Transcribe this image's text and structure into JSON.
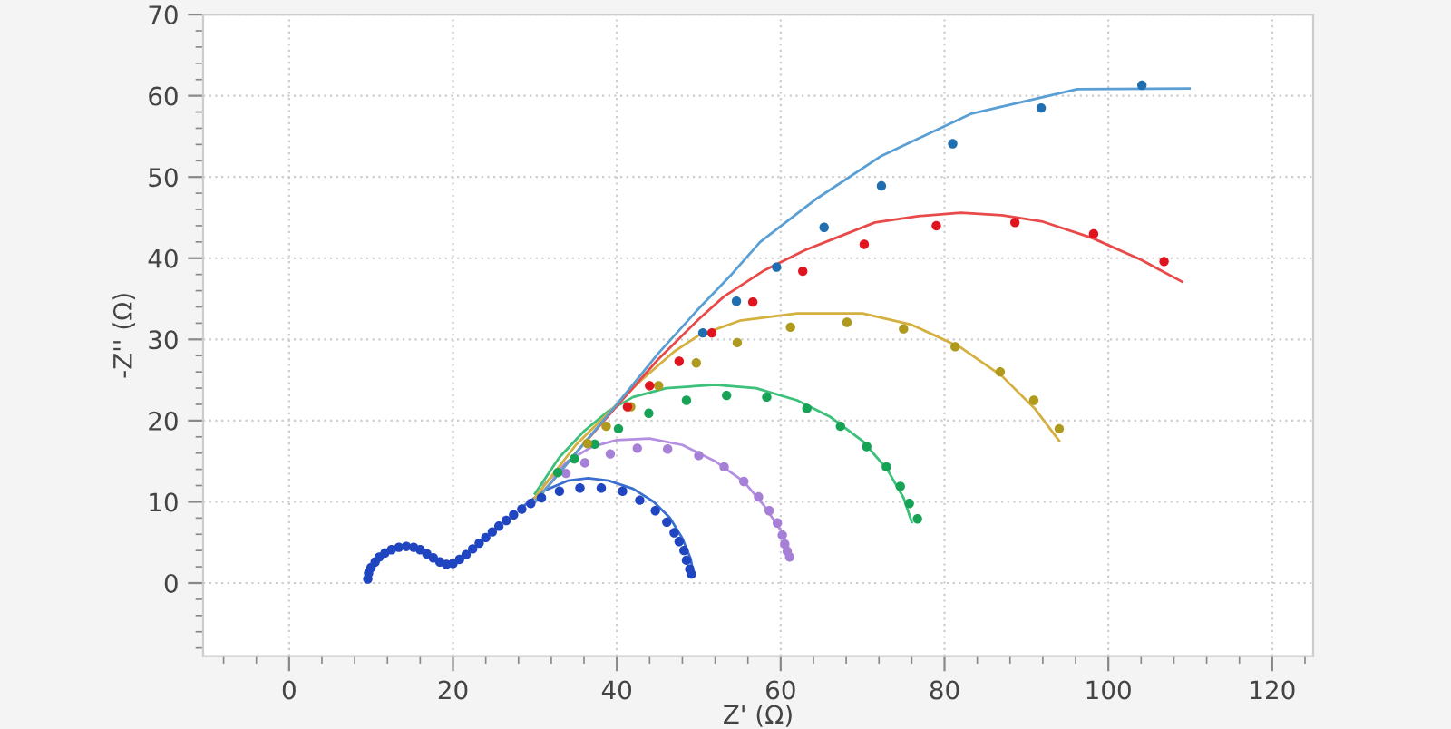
{
  "chart_data": {
    "type": "scatter",
    "xlabel": "Z' (Ω)",
    "ylabel": "-Z'' (Ω)",
    "xlim": [
      -10.5,
      125
    ],
    "ylim": [
      -9,
      70
    ],
    "xticks": [
      {
        "value": -8,
        "label": null
      },
      {
        "value": -4,
        "label": null
      },
      0,
      {
        "value": 4,
        "label": null
      },
      {
        "value": 8,
        "label": null
      },
      {
        "value": 12,
        "label": null
      },
      {
        "value": 16,
        "label": null
      },
      20,
      {
        "value": 24,
        "label": null
      },
      {
        "value": 28,
        "label": null
      },
      {
        "value": 32,
        "label": null
      },
      {
        "value": 36,
        "label": null
      },
      40,
      {
        "value": 44,
        "label": null
      },
      {
        "value": 48,
        "label": null
      },
      {
        "value": 52,
        "label": null
      },
      {
        "value": 56,
        "label": null
      },
      60,
      {
        "value": 64,
        "label": null
      },
      {
        "value": 68,
        "label": null
      },
      {
        "value": 72,
        "label": null
      },
      {
        "value": 76,
        "label": null
      },
      80,
      {
        "value": 84,
        "label": null
      },
      {
        "value": 88,
        "label": null
      },
      {
        "value": 92,
        "label": null
      },
      {
        "value": 96,
        "label": null
      },
      100,
      {
        "value": 104,
        "label": null
      },
      {
        "value": 108,
        "label": null
      },
      {
        "value": 112,
        "label": null
      },
      {
        "value": 116,
        "label": null
      },
      120,
      {
        "value": 124,
        "label": null
      }
    ],
    "yticks": [
      {
        "value": -8,
        "label": null
      },
      {
        "value": -6,
        "label": null
      },
      {
        "value": -4,
        "label": null
      },
      {
        "value": -2,
        "label": null
      },
      0,
      {
        "value": 2,
        "label": null
      },
      {
        "value": 4,
        "label": null
      },
      {
        "value": 6,
        "label": null
      },
      {
        "value": 8,
        "label": null
      },
      10,
      {
        "value": 12,
        "label": null
      },
      {
        "value": 14,
        "label": null
      },
      {
        "value": 16,
        "label": null
      },
      {
        "value": 18,
        "label": null
      },
      20,
      {
        "value": 22,
        "label": null
      },
      {
        "value": 24,
        "label": null
      },
      {
        "value": 26,
        "label": null
      },
      {
        "value": 28,
        "label": null
      },
      30,
      {
        "value": 32,
        "label": null
      },
      {
        "value": 34,
        "label": null
      },
      {
        "value": 36,
        "label": null
      },
      {
        "value": 38,
        "label": null
      },
      40,
      {
        "value": 42,
        "label": null
      },
      {
        "value": 44,
        "label": null
      },
      {
        "value": 46,
        "label": null
      },
      {
        "value": 48,
        "label": null
      },
      50,
      {
        "value": 52,
        "label": null
      },
      {
        "value": 54,
        "label": null
      },
      {
        "value": 56,
        "label": null
      },
      {
        "value": 58,
        "label": null
      },
      60,
      {
        "value": 62,
        "label": null
      },
      {
        "value": 64,
        "label": null
      },
      {
        "value": 66,
        "label": null
      },
      {
        "value": 68,
        "label": null
      },
      70
    ],
    "grid": true,
    "legend": false,
    "marker": "circle",
    "series": [
      {
        "type": "line",
        "marker": "none",
        "color": "#3a6fd0",
        "x": [
          28,
          31,
          34,
          36.5,
          39,
          42,
          44.5,
          46.5,
          48,
          49,
          49.3
        ],
        "values": [
          9,
          11.3,
          12.6,
          12.9,
          12.6,
          11.6,
          10,
          8,
          5.5,
          3,
          1.5
        ]
      },
      {
        "type": "line",
        "marker": "none",
        "color": "#b48ee0",
        "x": [
          31,
          34,
          37,
          40,
          44,
          48,
          52,
          55.5,
          58,
          60,
          61.3
        ],
        "values": [
          12,
          15,
          16.8,
          17.6,
          17.8,
          17,
          15,
          12.5,
          9.5,
          6.5,
          3.5
        ]
      },
      {
        "type": "line",
        "marker": "none",
        "color": "#3cc07a",
        "x": [
          30,
          33,
          36,
          39,
          42,
          46,
          52,
          57,
          62,
          66,
          70,
          73,
          75,
          76
        ],
        "values": [
          11,
          15.5,
          18.7,
          21.2,
          22.9,
          24,
          24.4,
          24,
          22.5,
          20.5,
          17.5,
          14,
          10.5,
          7.5
        ]
      },
      {
        "type": "line",
        "marker": "none",
        "color": "#d4b040",
        "x": [
          30,
          35,
          39,
          43,
          47,
          50,
          55,
          62,
          70,
          76,
          82,
          87,
          91,
          94
        ],
        "values": [
          10.5,
          17,
          21,
          25,
          28.5,
          30.5,
          32.3,
          33.2,
          33.2,
          31.8,
          29,
          25.5,
          21.5,
          17.5
        ]
      },
      {
        "type": "line",
        "marker": "none",
        "color": "#e84a4a",
        "x": [
          30,
          35,
          40,
          45,
          50,
          53.1,
          58,
          63,
          68,
          71.5,
          77,
          82,
          87,
          92,
          98,
          104,
          109
        ],
        "values": [
          10,
          16,
          21.8,
          27.5,
          32.5,
          35.3,
          38.5,
          41,
          43,
          44.4,
          45.2,
          45.6,
          45.3,
          44.5,
          42.5,
          39.8,
          37.1
        ]
      },
      {
        "type": "line",
        "marker": "none",
        "color": "#5a9fd4",
        "x": [
          30,
          35,
          40,
          45,
          50,
          54,
          57.5,
          64.2,
          72.3,
          83.3,
          96.2,
          109.9
        ],
        "values": [
          10,
          16,
          22,
          28.2,
          33.8,
          38,
          42,
          47.2,
          52.6,
          57.8,
          60.8,
          60.9
        ]
      },
      {
        "color": "#1f45c0",
        "x": [
          9.6,
          9.7,
          10,
          10.5,
          11,
          11.7,
          12.5,
          13.4,
          14.3,
          15.2,
          16,
          16.8,
          17.6,
          18.4,
          19.2,
          20,
          20.8,
          21.6,
          22.4,
          23.2,
          24,
          24.8,
          25.6,
          26.5,
          27.4,
          28.4,
          29.5,
          30.8,
          33,
          35.5,
          38.1,
          40.7,
          42.8,
          44.7,
          46.1,
          47,
          47.6,
          48.2,
          48.5,
          48.9,
          49.1
        ],
        "values": [
          0.5,
          1.2,
          1.9,
          2.6,
          3.2,
          3.7,
          4.1,
          4.4,
          4.5,
          4.4,
          4.1,
          3.6,
          3.1,
          2.6,
          2.3,
          2.4,
          2.9,
          3.5,
          4.2,
          4.9,
          5.6,
          6.3,
          7,
          7.7,
          8.4,
          9.1,
          9.8,
          10.5,
          11.3,
          11.7,
          11.7,
          11.3,
          10.2,
          8.9,
          7.5,
          6.2,
          5.1,
          4,
          2.8,
          1.7,
          1.1
        ]
      },
      {
        "color": "#a67fd6",
        "x": [
          33.8,
          36.1,
          39.2,
          42.5,
          46.2,
          50,
          53.1,
          55.5,
          57.3,
          58.6,
          59.6,
          60.2,
          60.5,
          60.8,
          61.1
        ],
        "values": [
          13.5,
          14.8,
          15.9,
          16.6,
          16.5,
          15.7,
          14.3,
          12.5,
          10.6,
          8.9,
          7.4,
          5.9,
          4.8,
          3.9,
          3.2
        ]
      },
      {
        "color": "#17a356",
        "x": [
          32.8,
          34.8,
          37.3,
          40.2,
          43.9,
          48.5,
          53.4,
          58.3,
          63.2,
          67.3,
          70.5,
          72.9,
          74.6,
          75.7,
          76.7
        ],
        "values": [
          13.6,
          15.3,
          17.1,
          19,
          20.9,
          22.5,
          23.1,
          22.9,
          21.5,
          19.3,
          16.8,
          14.3,
          11.9,
          9.8,
          7.9
        ]
      },
      {
        "color": "#b09a1e",
        "x": [
          36.4,
          38.7,
          41.7,
          45.1,
          49.7,
          54.7,
          61.2,
          68.1,
          75,
          81.3,
          86.8,
          90.9,
          94
        ],
        "values": [
          17.2,
          19.3,
          21.7,
          24.3,
          27.1,
          29.6,
          31.5,
          32.1,
          31.3,
          29.1,
          26,
          22.5,
          19
        ]
      },
      {
        "color": "#e0141e",
        "x": [
          41.3,
          44,
          47.6,
          51.6,
          56.6,
          62.7,
          70.2,
          79,
          88.6,
          98.2,
          106.8
        ],
        "values": [
          21.7,
          24.3,
          27.3,
          30.8,
          34.6,
          38.4,
          41.7,
          44,
          44.4,
          43,
          39.6
        ]
      },
      {
        "color": "#1f6fb0",
        "x": [
          50.5,
          54.6,
          59.5,
          65.3,
          72.3,
          81,
          91.8,
          104.1
        ],
        "values": [
          30.8,
          34.7,
          38.9,
          43.8,
          48.9,
          54.1,
          58.5,
          61.3
        ]
      }
    ]
  }
}
